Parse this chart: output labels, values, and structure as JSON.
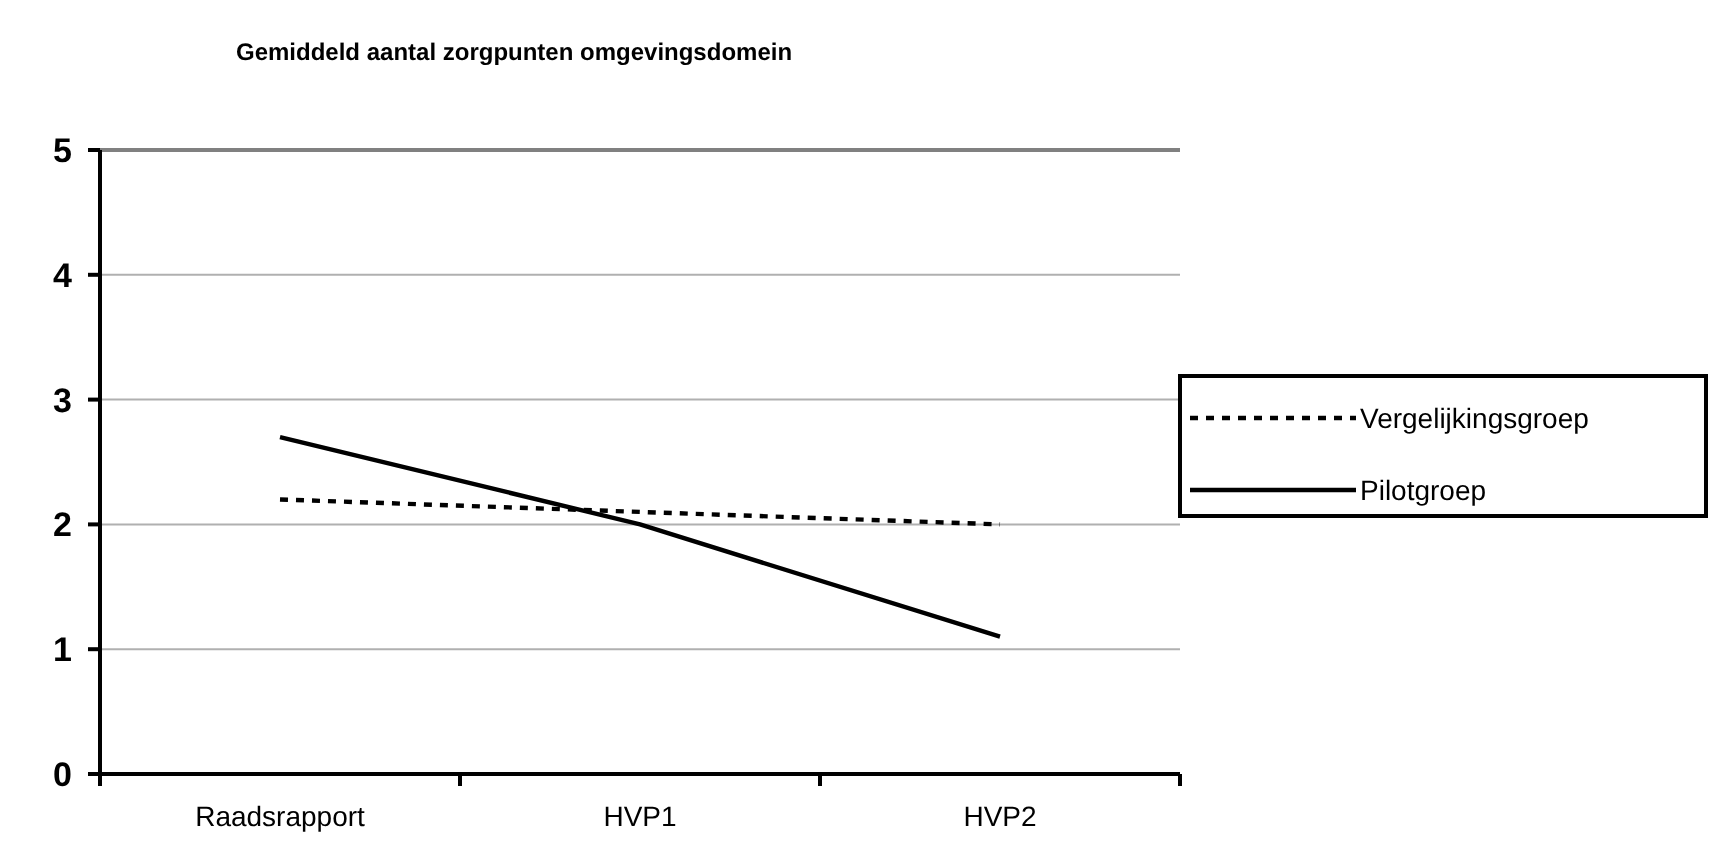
{
  "chart_data": {
    "type": "line",
    "title": "Gemiddeld aantal zorgpunten omgevingsdomein",
    "categories": [
      "Raadsrapport",
      "HVP1",
      "HVP2"
    ],
    "series": [
      {
        "name": "Vergelijkingsgroep",
        "color": "#000000",
        "values": [
          2.2,
          2.1,
          2.0
        ],
        "line_style": "dotted"
      },
      {
        "name": "Pilotgroep",
        "color": "#000000",
        "values": [
          2.7,
          2.0,
          1.1
        ],
        "line_style": "solid"
      }
    ],
    "ylim": [
      0,
      5
    ],
    "yticks": [
      0,
      1,
      2,
      3,
      4,
      5
    ],
    "grid": "y",
    "legend": "right",
    "marker": "none"
  }
}
